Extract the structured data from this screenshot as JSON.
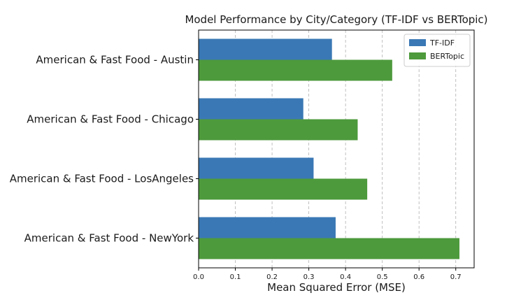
{
  "chart_data": {
    "type": "bar",
    "orientation": "horizontal",
    "title": "Model Performance by City/Category (TF-IDF vs BERTopic)",
    "xlabel": "Mean Squared Error (MSE)",
    "ylabel": "",
    "categories": [
      "American & Fast Food - Austin",
      "American & Fast Food - Chicago",
      "American & Fast Food - LosAngeles",
      "American & Fast Food - NewYork"
    ],
    "series": [
      {
        "name": "TF-IDF",
        "color": "#3a78b5",
        "values": [
          0.363,
          0.285,
          0.313,
          0.373
        ]
      },
      {
        "name": "BERTopic",
        "color": "#4d9a3c",
        "values": [
          0.527,
          0.433,
          0.459,
          0.71
        ]
      }
    ],
    "xlim": [
      0,
      0.75
    ],
    "xticks": [
      0.0,
      0.1,
      0.2,
      0.3,
      0.4,
      0.5,
      0.6,
      0.7
    ],
    "xtick_labels": [
      "0.0",
      "0.1",
      "0.2",
      "0.3",
      "0.4",
      "0.5",
      "0.6",
      "0.7"
    ],
    "grid": {
      "x": true,
      "style": "dashed"
    },
    "legend": {
      "position": "top-right",
      "entries": [
        "TF-IDF",
        "BERTopic"
      ]
    }
  }
}
